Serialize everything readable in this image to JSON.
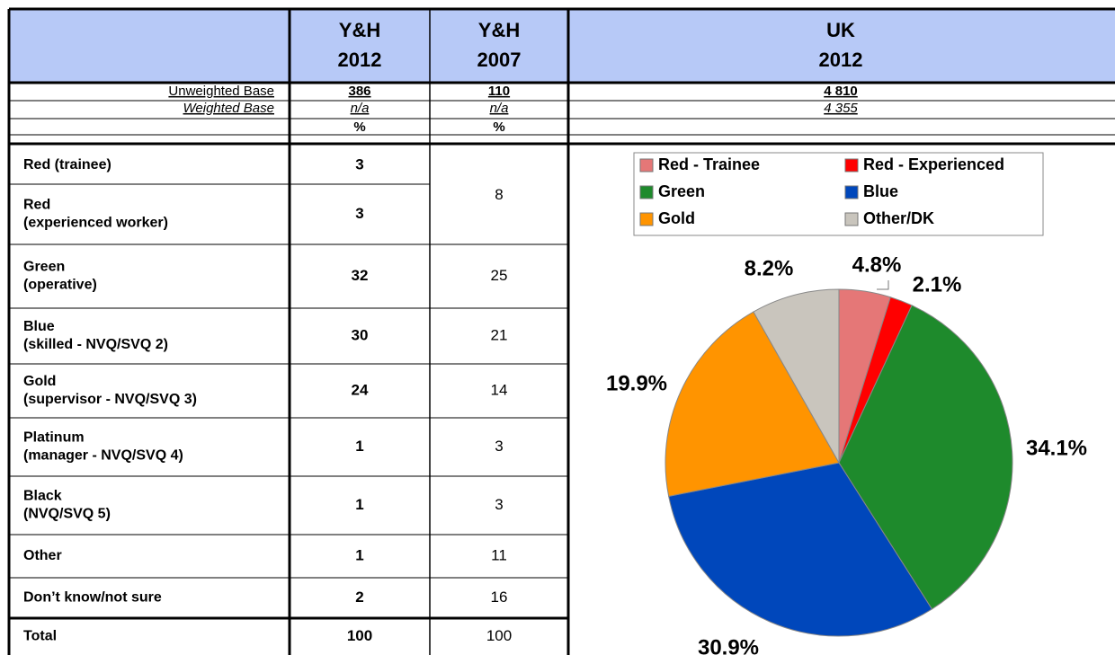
{
  "header": {
    "columns": [
      [
        "Y&H",
        "2012"
      ],
      [
        "Y&H",
        "2007"
      ],
      [
        "UK",
        "2012"
      ]
    ]
  },
  "bases": [
    {
      "label": "Unweighted Base",
      "values": [
        "386",
        "110",
        "4 810"
      ]
    },
    {
      "label": "Weighted Base",
      "values": [
        "n/a",
        "n/a",
        "4 355"
      ]
    }
  ],
  "percent_row": [
    "%",
    "%"
  ],
  "rows": [
    {
      "label": [
        "Red (trainee)"
      ],
      "y2012": 3,
      "y2007": 8
    },
    {
      "label": [
        "Red",
        "(experienced worker)"
      ],
      "y2012": 3
    },
    {
      "label": [
        "Green",
        "(operative)"
      ],
      "y2012": 32,
      "y2007": 25
    },
    {
      "label": [
        "Blue",
        "(skilled - NVQ/SVQ 2)"
      ],
      "y2012": 30,
      "y2007": 21
    },
    {
      "label": [
        "Gold",
        "(supervisor - NVQ/SVQ 3)"
      ],
      "y2012": 24,
      "y2007": 14
    },
    {
      "label": [
        "Platinum",
        "(manager - NVQ/SVQ 4)"
      ],
      "y2012": 1,
      "y2007": 3
    },
    {
      "label": [
        "Black",
        "(NVQ/SVQ 5)"
      ],
      "y2012": 1,
      "y2007": 3
    },
    {
      "label": [
        "Other"
      ],
      "y2012": 1,
      "y2007": 11
    },
    {
      "label": [
        "Don’t know/not sure"
      ],
      "y2012": 2,
      "y2007": 16
    },
    {
      "label": [
        "Total"
      ],
      "y2012": 100,
      "y2007": 100
    }
  ],
  "chart_data": {
    "type": "pie",
    "categories": [
      "Red - Trainee",
      "Red - Experienced",
      "Green",
      "Blue",
      "Gold",
      "Other/DK"
    ],
    "values": [
      4.8,
      2.1,
      34.1,
      30.9,
      19.9,
      8.2
    ],
    "value_labels": [
      "4.8%",
      "2.1%",
      "34.1%",
      "30.9%",
      "19.9%",
      "8.2%"
    ],
    "colors": [
      "#e57777",
      "#ff0000",
      "#1e8a2c",
      "#0047bb",
      "#ff9400",
      "#c9c5bd"
    ]
  }
}
